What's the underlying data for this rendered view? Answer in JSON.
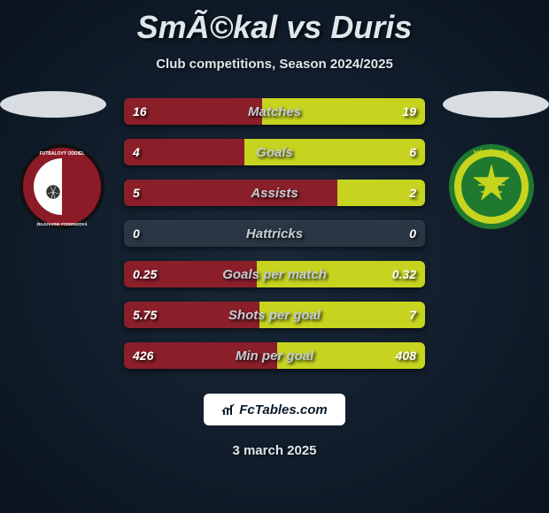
{
  "title": {
    "player1": "SmÃ©kal",
    "vs": "vs",
    "player2": "Duris"
  },
  "subtitle": "Club competitions, Season 2024/2025",
  "date": "3 march 2025",
  "footer_brand": "FcTables.com",
  "colors": {
    "left_fill": "#8a1f2a",
    "right_fill": "#c6d420",
    "bar_bg": "#2a3644",
    "text": "#dfe6ec"
  },
  "badges": {
    "left": {
      "outer": "#222222",
      "ring": "#8d1a27",
      "inner_left": "#ffffff",
      "inner_right": "#8d1a27",
      "text": "FUTBALOVÝ ODDIEL"
    },
    "right": {
      "outer": "#1f7a2f",
      "ring": "#c6d420",
      "inner": "#1f7a2f",
      "text": "MŠK ŽILINA"
    }
  },
  "bars": [
    {
      "label": "Matches",
      "left_val": "16",
      "right_val": "19",
      "left_w": 46,
      "right_w": 54
    },
    {
      "label": "Goals",
      "left_val": "4",
      "right_val": "6",
      "left_w": 40,
      "right_w": 60
    },
    {
      "label": "Assists",
      "left_val": "5",
      "right_val": "2",
      "left_w": 71,
      "right_w": 29
    },
    {
      "label": "Hattricks",
      "left_val": "0",
      "right_val": "0",
      "left_w": 0,
      "right_w": 0
    },
    {
      "label": "Goals per match",
      "left_val": "0.25",
      "right_val": "0.32",
      "left_w": 44,
      "right_w": 56
    },
    {
      "label": "Shots per goal",
      "left_val": "5.75",
      "right_val": "7",
      "left_w": 45,
      "right_w": 55
    },
    {
      "label": "Min per goal",
      "left_val": "426",
      "right_val": "408",
      "left_w": 51,
      "right_w": 49
    }
  ]
}
